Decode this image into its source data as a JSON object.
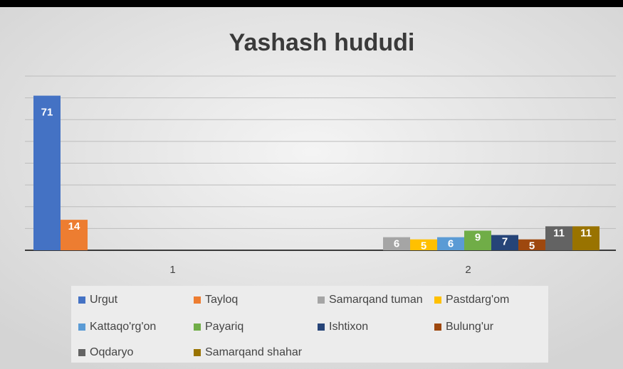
{
  "chart_data": {
    "type": "bar",
    "title": "Yashash hududi",
    "categories": [
      "1",
      "2"
    ],
    "series": [
      {
        "name": "Urgut",
        "color": "#4472c4",
        "values": [
          71,
          null
        ]
      },
      {
        "name": "Tayloq",
        "color": "#ed7d31",
        "values": [
          14,
          null
        ]
      },
      {
        "name": "Samarqand tuman",
        "color": "#a5a5a5",
        "values": [
          null,
          6
        ]
      },
      {
        "name": "Pastdarg'om",
        "color": "#ffc000",
        "values": [
          null,
          5
        ]
      },
      {
        "name": "Kattaqo'rg'on",
        "color": "#5b9bd5",
        "values": [
          null,
          6
        ]
      },
      {
        "name": "Payariq",
        "color": "#70ad47",
        "values": [
          null,
          9
        ]
      },
      {
        "name": "Ishtixon",
        "color": "#264478",
        "values": [
          null,
          7
        ]
      },
      {
        "name": "Bulung'ur",
        "color": "#9e480e",
        "values": [
          null,
          5
        ]
      },
      {
        "name": "Oqdaryo",
        "color": "#636363",
        "values": [
          null,
          11
        ]
      },
      {
        "name": "Samarqand shahar",
        "color": "#997300",
        "values": [
          null,
          11
        ]
      }
    ],
    "ylim": [
      0,
      80
    ],
    "yticks": [
      0,
      10,
      20,
      30,
      40,
      50,
      60,
      70,
      80
    ],
    "grid": true,
    "legend": "bottom"
  }
}
